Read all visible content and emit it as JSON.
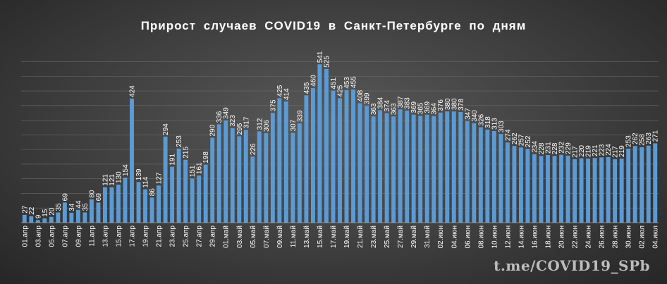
{
  "colors": {
    "bar": "#5b9bd5",
    "grid": "#6a6a6a",
    "text": "#ffffff",
    "axis": "#a0a0a0"
  },
  "watermark": "t.me/COVID19_SPb",
  "chart_data": {
    "type": "bar",
    "title": "Прирост  случаев  COVID19  в Санкт-Петербурге  по дням",
    "xlabel": "",
    "ylabel": "",
    "ylim": [
      0,
      580
    ],
    "grid": true,
    "categories": [
      "01.апр",
      "02.апр",
      "03.апр",
      "04.апр",
      "05.апр",
      "06.апр",
      "07.апр",
      "08.апр",
      "09.апр",
      "10.апр",
      "11.апр",
      "12.апр",
      "13.апр",
      "14.апр",
      "15.апр",
      "16.апр",
      "17.апр",
      "18.апр",
      "19.апр",
      "20.апр",
      "21.апр",
      "22.апр",
      "23.апр",
      "24.апр",
      "25.апр",
      "26.апр",
      "27.апр",
      "28.апр",
      "29.апр",
      "30.апр",
      "01.май",
      "02.май",
      "03.май",
      "04.май",
      "05.май",
      "06.май",
      "07.май",
      "08.май",
      "09.май",
      "10.май",
      "11.май",
      "12.май",
      "13.май",
      "14.май",
      "15.май",
      "16.май",
      "17.май",
      "18.май",
      "19.май",
      "20.май",
      "21.май",
      "22.май",
      "23.май",
      "24.май",
      "25.май",
      "26.май",
      "27.май",
      "28.май",
      "29.май",
      "30.май",
      "31.май",
      "01.июн",
      "02.июн",
      "03.июн",
      "04.июн",
      "05.июн",
      "06.июн",
      "07.июн",
      "08.июн",
      "09.июн",
      "10.июн",
      "11.июн",
      "12.июн",
      "13.июн",
      "14.июн",
      "15.июн",
      "16.июн",
      "17.июн",
      "18.июн",
      "19.июн",
      "20.июн",
      "21.июн",
      "22.июн",
      "23.июн",
      "24.июн",
      "25.июн",
      "26.июн",
      "27.июн",
      "28.июн",
      "29.июн",
      "30.июн",
      "01.июл",
      "02.июл",
      "03.июл",
      "04.июл"
    ],
    "values": [
      27,
      22,
      9,
      15,
      20,
      35,
      69,
      34,
      44,
      35,
      80,
      69,
      121,
      121,
      130,
      154,
      424,
      139,
      114,
      86,
      127,
      294,
      191,
      253,
      215,
      151,
      161,
      198,
      290,
      336,
      349,
      323,
      295,
      317,
      226,
      312,
      306,
      375,
      425,
      414,
      307,
      339,
      435,
      460,
      541,
      525,
      451,
      425,
      453,
      455,
      408,
      399,
      363,
      384,
      374,
      363,
      387,
      383,
      369,
      365,
      369,
      364,
      376,
      380,
      380,
      378,
      347,
      340,
      326,
      318,
      313,
      303,
      274,
      262,
      257,
      252,
      234,
      228,
      231,
      228,
      232,
      229,
      217,
      220,
      219,
      221,
      223,
      224,
      217,
      219,
      253,
      262,
      258,
      263,
      271
    ]
  }
}
